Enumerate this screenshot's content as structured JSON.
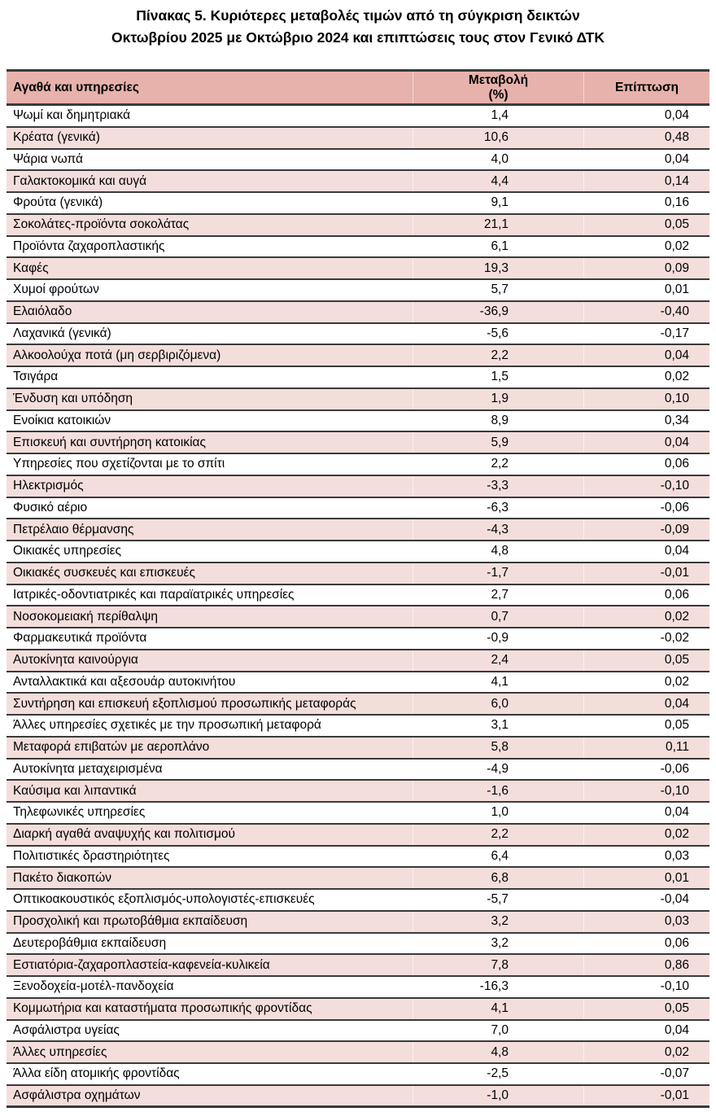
{
  "title": {
    "line1": "Πίνακας 5. Κυριότερες μεταβολές τιμών από τη σύγκριση δεικτών",
    "line2": "Οκτωβρίου 2025 με Οκτώβριο 2024 και επιπτώσεις τους στον Γενικό ΔΤΚ"
  },
  "colors": {
    "header_bg": "#E7B2AC",
    "row_alt_bg": "#F3DEDC",
    "border": "#3A3A3A",
    "text": "#000000"
  },
  "table": {
    "header": {
      "col1": "Αγαθά και υπηρεσίες",
      "col2_line1": "Μεταβολή",
      "col2_line2": "(%)",
      "col3": "Επίπτωση"
    },
    "rows": [
      {
        "label": "Ψωμί και δημητριακά",
        "change": "1,4",
        "impact": "0,04"
      },
      {
        "label": "Κρέατα (γενικά)",
        "change": "10,6",
        "impact": "0,48"
      },
      {
        "label": "Ψάρια νωπά",
        "change": "4,0",
        "impact": "0,04"
      },
      {
        "label": "Γαλακτοκομικά και αυγά",
        "change": "4,4",
        "impact": "0,14"
      },
      {
        "label": "Φρούτα (γενικά)",
        "change": "9,1",
        "impact": "0,16"
      },
      {
        "label": "Σοκολάτες-προϊόντα σοκολάτας",
        "change": "21,1",
        "impact": "0,05"
      },
      {
        "label": "Προϊόντα ζαχαροπλαστικής",
        "change": "6,1",
        "impact": "0,02"
      },
      {
        "label": "Καφές",
        "change": "19,3",
        "impact": "0,09"
      },
      {
        "label": "Χυμοί φρούτων",
        "change": "5,7",
        "impact": "0,01"
      },
      {
        "label": "Ελαιόλαδο",
        "change": "-36,9",
        "impact": "-0,40"
      },
      {
        "label": "Λαχανικά (γενικά)",
        "change": "-5,6",
        "impact": "-0,17"
      },
      {
        "label": "Αλκοολούχα ποτά (μη σερβιριζόμενα)",
        "change": "2,2",
        "impact": "0,04"
      },
      {
        "label": "Τσιγάρα",
        "change": "1,5",
        "impact": "0,02"
      },
      {
        "label": "Ένδυση και υπόδηση",
        "change": "1,9",
        "impact": "0,10"
      },
      {
        "label": "Ενοίκια κατοικιών",
        "change": "8,9",
        "impact": "0,34"
      },
      {
        "label": "Επισκευή και συντήρηση κατοικίας",
        "change": "5,9",
        "impact": "0,04"
      },
      {
        "label": "Υπηρεσίες που σχετίζονται με το σπίτι",
        "change": "2,2",
        "impact": "0,06"
      },
      {
        "label": "Ηλεκτρισμός",
        "change": "-3,3",
        "impact": "-0,10"
      },
      {
        "label": "Φυσικό αέριο",
        "change": "-6,3",
        "impact": "-0,06"
      },
      {
        "label": "Πετρέλαιο θέρμανσης",
        "change": "-4,3",
        "impact": "-0,09"
      },
      {
        "label": "Οικιακές υπηρεσίες",
        "change": "4,8",
        "impact": "0,04"
      },
      {
        "label": "Οικιακές συσκευές και επισκευές",
        "change": "-1,7",
        "impact": "-0,01"
      },
      {
        "label": "Ιατρικές-οδοντιατρικές και παραϊατρικές υπηρεσίες",
        "change": "2,7",
        "impact": "0,06"
      },
      {
        "label": "Νοσοκομειακή περίθαλψη",
        "change": "0,7",
        "impact": "0,02"
      },
      {
        "label": "Φαρμακευτικά προϊόντα",
        "change": "-0,9",
        "impact": "-0,02"
      },
      {
        "label": "Αυτοκίνητα καινούργια",
        "change": "2,4",
        "impact": "0,05"
      },
      {
        "label": "Ανταλλακτικά και αξεσουάρ αυτοκινήτου",
        "change": "4,1",
        "impact": "0,02"
      },
      {
        "label": "Συντήρηση και επισκευή εξοπλισμού προσωπικής μεταφοράς",
        "change": "6,0",
        "impact": "0,04"
      },
      {
        "label": "Άλλες υπηρεσίες σχετικές με την προσωπική μεταφορά",
        "change": "3,1",
        "impact": "0,05"
      },
      {
        "label": "Μεταφορά επιβατών με αεροπλάνο",
        "change": "5,8",
        "impact": "0,11"
      },
      {
        "label": "Αυτοκίνητα μεταχειρισμένα",
        "change": "-4,9",
        "impact": "-0,06"
      },
      {
        "label": "Καύσιμα και λιπαντικά",
        "change": "-1,6",
        "impact": "-0,10"
      },
      {
        "label": "Τηλεφωνικές υπηρεσίες",
        "change": "1,0",
        "impact": "0,04"
      },
      {
        "label": "Διαρκή αγαθά αναψυχής και πολιτισμού",
        "change": "2,2",
        "impact": "0,02"
      },
      {
        "label": "Πολιτιστικές δραστηριότητες",
        "change": "6,4",
        "impact": "0,03"
      },
      {
        "label": "Πακέτο διακοπών",
        "change": "6,8",
        "impact": "0,01"
      },
      {
        "label": "Οπτικοακουστικός εξοπλισμός-υπολογιστές-επισκευές",
        "change": "-5,7",
        "impact": "-0,04"
      },
      {
        "label": "Προσχολική και πρωτοβάθμια εκπαίδευση",
        "change": "3,2",
        "impact": "0,03"
      },
      {
        "label": "Δευτεροβάθμια εκπαίδευση",
        "change": "3,2",
        "impact": "0,06"
      },
      {
        "label": "Εστιατόρια-ζαχαροπλαστεία-καφενεία-κυλικεία",
        "change": "7,8",
        "impact": "0,86"
      },
      {
        "label": "Ξενοδοχεία-μοτέλ-πανδοχεία",
        "change": "-16,3",
        "impact": "-0,10"
      },
      {
        "label": "Κομμωτήρια και καταστήματα προσωπικής φροντίδας",
        "change": "4,1",
        "impact": "0,05"
      },
      {
        "label": "Ασφάλιστρα υγείας",
        "change": "7,0",
        "impact": "0,04"
      },
      {
        "label": "Άλλες υπηρεσίες",
        "change": "4,8",
        "impact": "0,02"
      },
      {
        "label": "Άλλα είδη ατομικής φροντίδας",
        "change": "-2,5",
        "impact": "-0,07"
      },
      {
        "label": "Ασφάλιστρα οχημάτων",
        "change": "-1,0",
        "impact": "-0,01"
      }
    ]
  }
}
